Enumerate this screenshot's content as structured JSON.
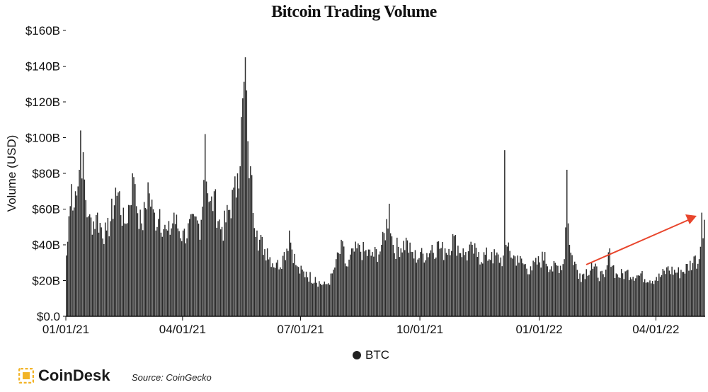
{
  "title": "Bitcoin Trading Volume",
  "logo_text": "CoinDesk",
  "source": "Source: CoinGecko",
  "colors": {
    "bars": "#2b2b2b",
    "arrow": "#e8452c",
    "logo": "#f2b428"
  },
  "icons": {
    "logo": "coindesk-logo-icon",
    "legend_marker": "circle-icon"
  },
  "chart_data": {
    "type": "bar",
    "title": "Bitcoin Trading Volume",
    "xlabel": "",
    "ylabel": "Volume (USD)",
    "y_unit": "$B",
    "ylim": [
      0,
      160
    ],
    "yticks": [
      0,
      20,
      40,
      60,
      80,
      100,
      120,
      140,
      160
    ],
    "ytick_labels": [
      "$0.0",
      "$20B",
      "$40B",
      "$60B",
      "$80B",
      "$100B",
      "$120B",
      "$140B",
      "$160B"
    ],
    "x_range": [
      "2021-01-01",
      "2022-05-08"
    ],
    "xticks": [
      "2021-01-01",
      "2021-04-01",
      "2021-07-01",
      "2021-10-01",
      "2022-01-01",
      "2022-04-01"
    ],
    "xtick_labels": [
      "01/01/21",
      "04/01/21",
      "07/01/21",
      "10/01/21",
      "01/01/22",
      "04/01/22"
    ],
    "grid": false,
    "legend_position": "bottom-center",
    "annotation": "upward arrow (recent rise in volume)",
    "series": [
      {
        "name": "BTC",
        "color": "#2b2b2b",
        "anchors": [
          [
            "2021-01-01",
            34
          ],
          [
            "2021-01-03",
            56
          ],
          [
            "2021-01-05",
            74
          ],
          [
            "2021-01-08",
            70
          ],
          [
            "2021-01-11",
            82
          ],
          [
            "2021-01-12",
            104
          ],
          [
            "2021-01-18",
            56
          ],
          [
            "2021-01-25",
            58
          ],
          [
            "2021-02-01",
            48
          ],
          [
            "2021-02-08",
            72
          ],
          [
            "2021-02-11",
            70
          ],
          [
            "2021-02-15",
            52
          ],
          [
            "2021-02-21",
            80
          ],
          [
            "2021-02-23",
            74
          ],
          [
            "2021-02-28",
            52
          ],
          [
            "2021-03-05",
            75
          ],
          [
            "2021-03-10",
            58
          ],
          [
            "2021-03-14",
            60
          ],
          [
            "2021-03-20",
            48
          ],
          [
            "2021-03-25",
            58
          ],
          [
            "2021-04-01",
            48
          ],
          [
            "2021-04-10",
            56
          ],
          [
            "2021-04-15",
            54
          ],
          [
            "2021-04-18",
            102
          ],
          [
            "2021-04-21",
            64
          ],
          [
            "2021-04-25",
            70
          ],
          [
            "2021-05-01",
            50
          ],
          [
            "2021-05-10",
            72
          ],
          [
            "2021-05-13",
            80
          ],
          [
            "2021-05-19",
            145
          ],
          [
            "2021-05-21",
            98
          ],
          [
            "2021-05-23",
            84
          ],
          [
            "2021-05-28",
            48
          ],
          [
            "2021-06-05",
            38
          ],
          [
            "2021-06-12",
            30
          ],
          [
            "2021-06-18",
            36
          ],
          [
            "2021-06-22",
            48
          ],
          [
            "2021-06-28",
            28
          ],
          [
            "2021-07-05",
            25
          ],
          [
            "2021-07-12",
            22
          ],
          [
            "2021-07-20",
            18
          ],
          [
            "2021-07-25",
            24
          ],
          [
            "2021-07-28",
            32
          ],
          [
            "2021-08-02",
            42
          ],
          [
            "2021-08-05",
            28
          ],
          [
            "2021-08-10",
            38
          ],
          [
            "2021-08-15",
            40
          ],
          [
            "2021-08-25",
            36
          ],
          [
            "2021-09-01",
            40
          ],
          [
            "2021-09-07",
            63
          ],
          [
            "2021-09-10",
            40
          ],
          [
            "2021-09-20",
            44
          ],
          [
            "2021-09-25",
            36
          ],
          [
            "2021-10-01",
            36
          ],
          [
            "2021-10-10",
            40
          ],
          [
            "2021-10-15",
            42
          ],
          [
            "2021-10-20",
            38
          ],
          [
            "2021-10-26",
            46
          ],
          [
            "2021-11-05",
            36
          ],
          [
            "2021-11-10",
            40
          ],
          [
            "2021-11-15",
            36
          ],
          [
            "2021-11-25",
            36
          ],
          [
            "2021-12-04",
            34
          ],
          [
            "2021-12-05",
            93
          ],
          [
            "2021-12-06",
            40
          ],
          [
            "2021-12-15",
            34
          ],
          [
            "2021-12-25",
            28
          ],
          [
            "2022-01-05",
            36
          ],
          [
            "2022-01-10",
            28
          ],
          [
            "2022-01-20",
            32
          ],
          [
            "2022-01-22",
            82
          ],
          [
            "2022-01-24",
            40
          ],
          [
            "2022-02-01",
            24
          ],
          [
            "2022-02-10",
            30
          ],
          [
            "2022-02-20",
            22
          ],
          [
            "2022-02-24",
            38
          ],
          [
            "2022-03-01",
            24
          ],
          [
            "2022-03-10",
            26
          ],
          [
            "2022-03-20",
            24
          ],
          [
            "2022-04-01",
            22
          ],
          [
            "2022-04-10",
            28
          ],
          [
            "2022-04-20",
            26
          ],
          [
            "2022-05-01",
            34
          ],
          [
            "2022-05-04",
            32
          ],
          [
            "2022-05-06",
            58
          ],
          [
            "2022-05-08",
            54
          ]
        ]
      }
    ]
  }
}
